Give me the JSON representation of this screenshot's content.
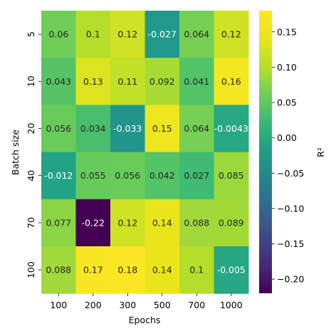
{
  "chart_data": {
    "type": "heatmap",
    "title": "",
    "xlabel": "Epochs",
    "ylabel": "Batch size",
    "x_categories": [
      "100",
      "200",
      "300",
      "500",
      "700",
      "1000"
    ],
    "y_categories": [
      "5",
      "10",
      "20",
      "40",
      "70",
      "100"
    ],
    "values": [
      [
        0.06,
        0.1,
        0.12,
        -0.027,
        0.064,
        0.12
      ],
      [
        0.043,
        0.13,
        0.11,
        0.092,
        0.041,
        0.16
      ],
      [
        0.056,
        0.034,
        -0.033,
        0.15,
        0.064,
        -0.0043
      ],
      [
        -0.012,
        0.055,
        0.056,
        0.042,
        0.027,
        0.085
      ],
      [
        0.077,
        -0.22,
        0.12,
        0.14,
        0.088,
        0.089
      ],
      [
        0.088,
        0.17,
        0.18,
        0.14,
        0.1,
        -0.005
      ]
    ],
    "cell_labels": [
      [
        "0.06",
        "0.1",
        "0.12",
        "-0.027",
        "0.064",
        "0.12"
      ],
      [
        "0.043",
        "0.13",
        "0.11",
        "0.092",
        "0.041",
        "0.16"
      ],
      [
        "0.056",
        "0.034",
        "-0.033",
        "0.15",
        "0.064",
        "-0.0043"
      ],
      [
        "-0.012",
        "0.055",
        "0.056",
        "0.042",
        "0.027",
        "0.085"
      ],
      [
        "0.077",
        "-0.22",
        "0.12",
        "0.14",
        "0.088",
        "0.089"
      ],
      [
        "0.088",
        "0.17",
        "0.18",
        "0.14",
        "0.1",
        "-0.005"
      ]
    ],
    "colormap": "viridis",
    "vmin": -0.22,
    "vmax": 0.18,
    "colorbar": {
      "label": "R²",
      "ticks": [
        0.15,
        0.1,
        0.05,
        0.0,
        -0.05,
        -0.1,
        -0.15,
        -0.2
      ],
      "tick_labels": [
        "0.15",
        "0.10",
        "0.05",
        "0.00",
        "−0.05",
        "−0.10",
        "−0.15",
        "−0.20"
      ]
    }
  }
}
